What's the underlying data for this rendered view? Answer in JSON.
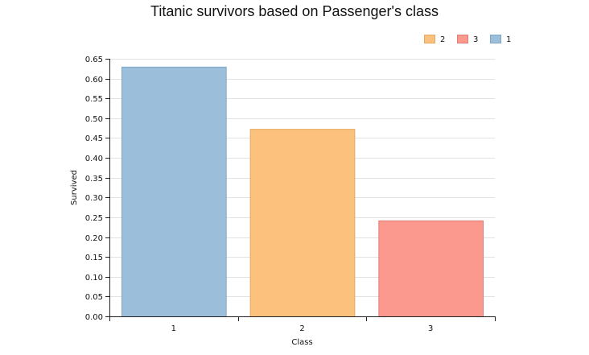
{
  "chart_data": {
    "type": "bar",
    "title": "Titanic survivors based on Passenger's class",
    "xlabel": "Class",
    "ylabel": "Survived",
    "categories": [
      "1",
      "2",
      "3"
    ],
    "values": [
      0.63,
      0.473,
      0.242
    ],
    "bar_colors": [
      "#9bbfdb",
      "#fcc27d",
      "#fb998f"
    ],
    "bar_strokes": [
      "#7fa6c4",
      "#e6a85f",
      "#e27d74"
    ],
    "ylim": [
      0,
      0.65
    ],
    "yticks": [
      0.0,
      0.05,
      0.1,
      0.15,
      0.2,
      0.25,
      0.3,
      0.35,
      0.4,
      0.45,
      0.5,
      0.55,
      0.6,
      0.65
    ],
    "ytick_labels": [
      "0.00",
      "0.05",
      "0.10",
      "0.15",
      "0.20",
      "0.25",
      "0.30",
      "0.35",
      "0.40",
      "0.45",
      "0.50",
      "0.55",
      "0.60",
      "0.65"
    ],
    "grid": true,
    "legend_position": "top-right",
    "legend": [
      {
        "label": "2",
        "color": "#fcc27d"
      },
      {
        "label": "3",
        "color": "#fb998f"
      },
      {
        "label": "1",
        "color": "#9bbfdb"
      }
    ]
  }
}
